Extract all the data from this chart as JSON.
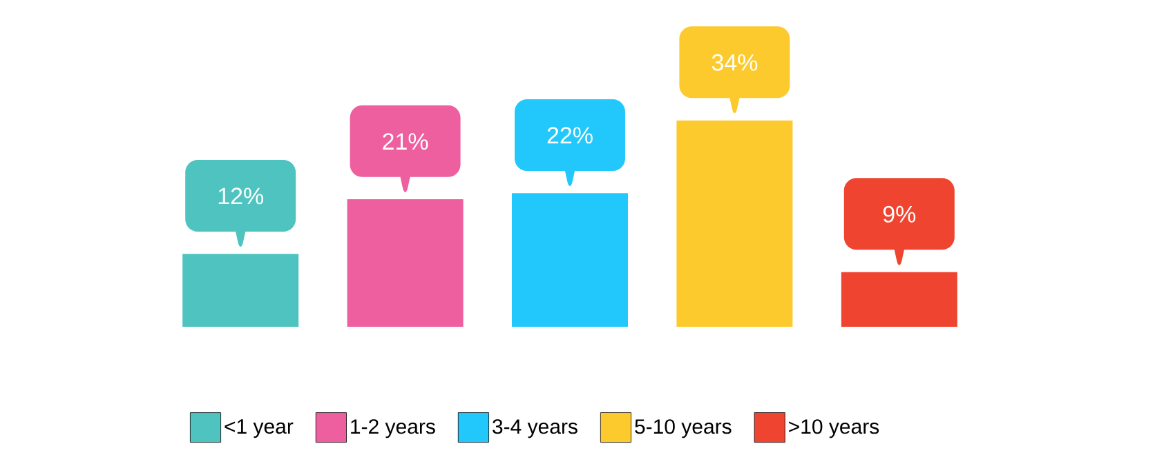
{
  "chart_data": {
    "type": "bar",
    "stacked": true,
    "categories": [
      null,
      null,
      null,
      null,
      null
    ],
    "series": [
      {
        "name": "<1 year",
        "color": "#4fc3bf",
        "values": [
          12,
          null,
          null,
          null,
          null
        ],
        "value_labels": [
          "12%",
          null,
          null,
          null,
          null
        ]
      },
      {
        "name": "1-2 years",
        "color": "#ee5fa0",
        "values": [
          null,
          21,
          null,
          null,
          null
        ],
        "value_labels": [
          null,
          "21%",
          null,
          null,
          null
        ]
      },
      {
        "name": "3-4 years",
        "color": "#22c8fb",
        "values": [
          null,
          null,
          22,
          null,
          null
        ],
        "value_labels": [
          null,
          null,
          "22%",
          null,
          null
        ]
      },
      {
        "name": "5-10 years",
        "color": "#fdca2e",
        "values": [
          null,
          null,
          null,
          34,
          null
        ],
        "value_labels": [
          null,
          null,
          null,
          "34%",
          null
        ]
      },
      {
        "name": ">10 years",
        "color": "#ef4530",
        "values": [
          null,
          null,
          null,
          null,
          9
        ],
        "value_labels": [
          null,
          null,
          null,
          null,
          "9%"
        ]
      }
    ],
    "legend": "bottom"
  }
}
